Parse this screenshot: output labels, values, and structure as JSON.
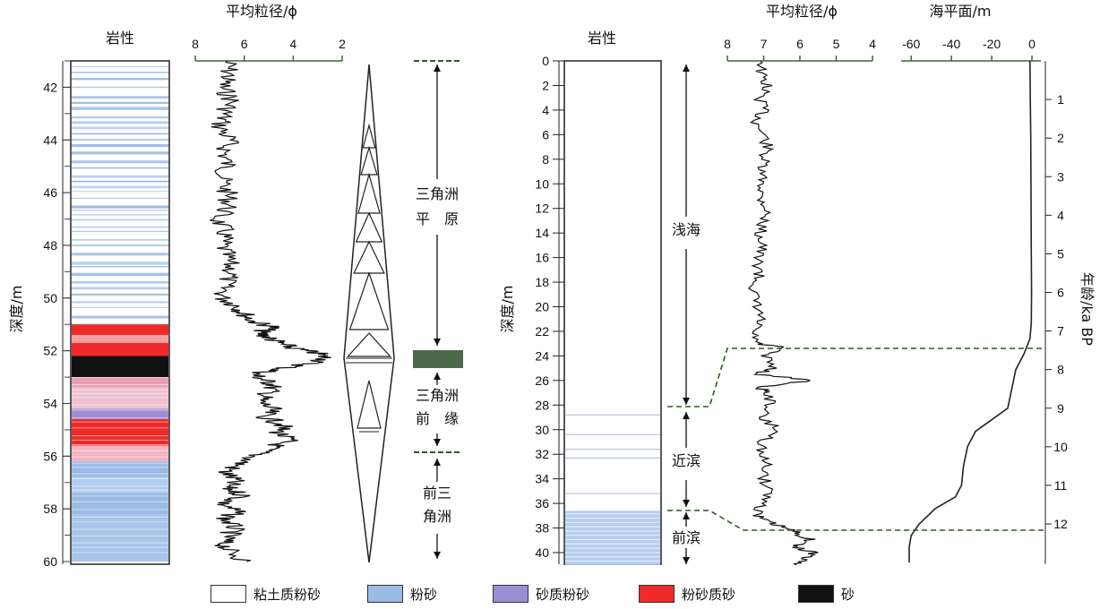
{
  "labels": {
    "lith_left": "岩性",
    "lith_right": "岩性",
    "grain_left": "平均粒径/ϕ",
    "grain_right": "平均粒径/ϕ",
    "sea_level": "海平面/m",
    "depth_left": "深度/m",
    "depth_right": "深度/m",
    "age": "年龄/ka BP"
  },
  "facies_left": [
    {
      "text": "三角洲"
    },
    {
      "text": "平　原"
    },
    {
      "text": "三角洲"
    },
    {
      "text": "前　缘"
    },
    {
      "text": "前三"
    },
    {
      "text": "角洲"
    }
  ],
  "facies_right": [
    {
      "text": "浅海"
    },
    {
      "text": "近滨"
    },
    {
      "text": "前滨"
    }
  ],
  "legend": [
    {
      "label": "粘土质粉砂",
      "color": "#ffffff"
    },
    {
      "label": "粉砂",
      "color": "#9bbbe6"
    },
    {
      "label": "砂质粉砂",
      "color": "#9c8ed4"
    },
    {
      "label": "粉砂质砂",
      "color": "#ee2a2a"
    },
    {
      "label": "砂",
      "color": "#111111"
    }
  ],
  "colors": {
    "line": "#1a2a1a",
    "axis_green": "#3a6b2e",
    "frame": "#222222",
    "dash": "#2d5a22"
  },
  "chart_data": [
    {
      "type": "line",
      "title": "平均粒径/ϕ",
      "ylabel": "深度/m",
      "ylim": [
        41,
        60
      ],
      "xlim": [
        8,
        2
      ],
      "y_ticks": [
        42,
        44,
        46,
        48,
        50,
        52,
        54,
        56,
        58,
        60
      ],
      "x_ticks": [
        8,
        6,
        4,
        2
      ],
      "series": [
        {
          "depth": [
            41.0,
            41.5,
            42.0,
            42.5,
            43.0,
            43.5,
            44.0,
            44.5,
            45.0,
            45.5,
            46.0,
            46.5,
            47.0,
            47.5,
            48.0,
            48.5,
            49.0,
            49.5,
            50.0,
            50.3,
            50.6,
            50.9,
            51.1,
            51.3,
            51.5,
            51.7,
            51.9,
            52.1,
            52.3,
            52.5,
            52.7,
            52.9,
            53.1,
            53.3,
            53.6,
            53.9,
            54.2,
            54.5,
            54.8,
            55.1,
            55.4,
            55.7,
            56.0,
            56.3,
            56.6,
            56.9,
            57.2,
            57.5,
            57.8,
            58.1,
            58.4,
            58.7,
            59.0,
            59.3,
            59.6,
            60.0
          ],
          "phi": [
            6.7,
            6.6,
            6.9,
            6.5,
            6.8,
            7.0,
            6.6,
            6.8,
            6.7,
            6.9,
            6.7,
            6.6,
            7.1,
            6.8,
            6.9,
            6.7,
            6.5,
            6.8,
            6.9,
            6.3,
            6.0,
            5.6,
            4.8,
            5.4,
            5.0,
            4.6,
            4.0,
            3.0,
            2.6,
            3.4,
            4.6,
            5.6,
            5.2,
            4.8,
            5.0,
            5.4,
            4.9,
            5.2,
            4.4,
            4.6,
            4.2,
            5.0,
            5.6,
            6.2,
            6.8,
            6.4,
            6.7,
            6.0,
            6.9,
            6.3,
            6.8,
            6.4,
            6.6,
            6.9,
            6.6,
            5.9
          ]
        }
      ]
    },
    {
      "type": "line",
      "title": "平均粒径/ϕ",
      "ylabel": "深度/m",
      "ylim": [
        0,
        41
      ],
      "xlim": [
        8,
        4
      ],
      "y_ticks": [
        0,
        2,
        4,
        6,
        8,
        10,
        12,
        14,
        16,
        18,
        20,
        22,
        24,
        26,
        28,
        30,
        32,
        34,
        36,
        38,
        40
      ],
      "x_ticks": [
        8,
        7,
        6,
        5,
        4
      ],
      "series": [
        {
          "depth": [
            0,
            1,
            2,
            3,
            4,
            5,
            6,
            7,
            8,
            9,
            10,
            11,
            12,
            13,
            14,
            15,
            16,
            17,
            18,
            19,
            20,
            21,
            22,
            23,
            23.3,
            24,
            25,
            25.5,
            26,
            26.5,
            27,
            28,
            29,
            30,
            31,
            32,
            33,
            34,
            35,
            36,
            37,
            37.5,
            38,
            38.5,
            39,
            39.5,
            40,
            40.5,
            41
          ],
          "phi": [
            7.0,
            7.1,
            6.9,
            7.1,
            7.0,
            7.2,
            7.0,
            6.9,
            7.0,
            7.1,
            7.0,
            7.1,
            6.9,
            7.0,
            7.1,
            7.0,
            7.2,
            7.1,
            7.2,
            7.3,
            7.2,
            7.1,
            7.3,
            7.2,
            6.5,
            7.0,
            6.7,
            7.2,
            5.6,
            7.1,
            6.9,
            6.8,
            7.1,
            6.6,
            7.0,
            7.1,
            6.9,
            7.0,
            6.8,
            7.0,
            7.2,
            6.9,
            6.4,
            6.0,
            5.7,
            6.2,
            5.6,
            5.9,
            6.1
          ]
        }
      ]
    },
    {
      "type": "line",
      "title": "海平面/m",
      "xlim": [
        -70,
        4
      ],
      "x_ticks": [
        -60,
        -40,
        -20,
        0
      ],
      "y2label": "年龄/ka BP",
      "y2_ticks": [
        1,
        2,
        3,
        4,
        5,
        6,
        7,
        8,
        9,
        10,
        11,
        12
      ],
      "y2lim": [
        0,
        13
      ],
      "series": [
        {
          "age": [
            0,
            1,
            2,
            3,
            4,
            5,
            6,
            6.8,
            7.2,
            7.6,
            8.0,
            8.5,
            9.0,
            9.3,
            9.6,
            10.0,
            10.5,
            11.0,
            11.3,
            11.6,
            12.0,
            12.3,
            12.6,
            13.0
          ],
          "sea": [
            -1,
            -0.8,
            -0.6,
            -0.5,
            -0.4,
            -0.3,
            -0.2,
            -0.3,
            -1,
            -4,
            -8,
            -10,
            -12,
            -20,
            -28,
            -32,
            -34,
            -35,
            -38,
            -48,
            -56,
            -60,
            -61,
            -61
          ]
        }
      ]
    }
  ]
}
